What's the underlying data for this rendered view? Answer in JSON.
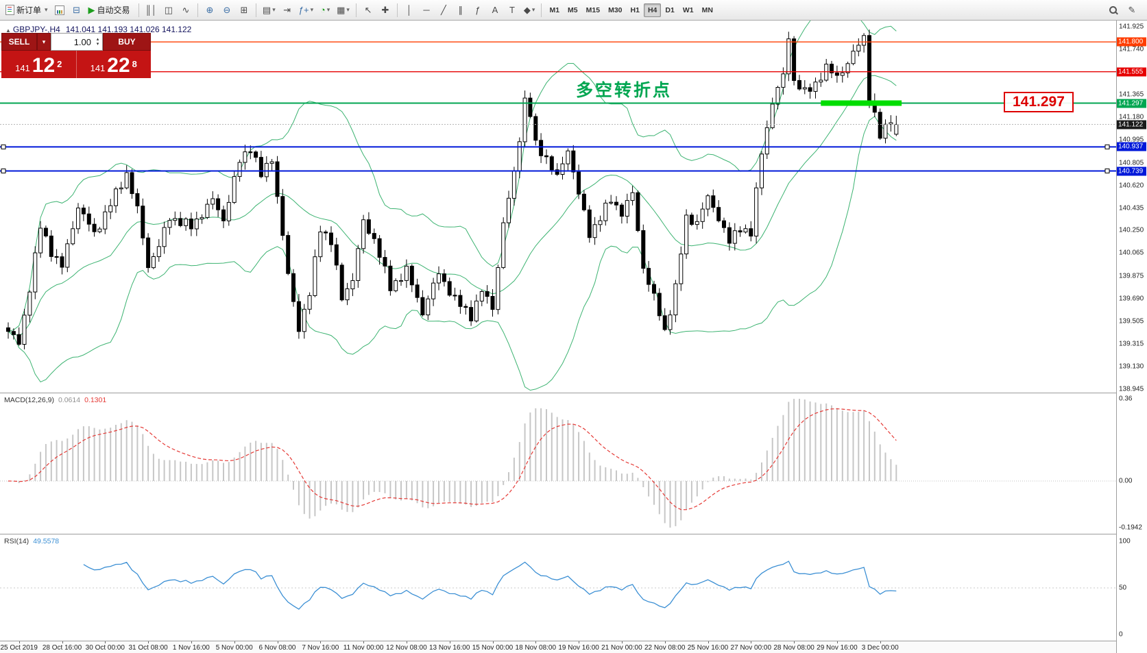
{
  "toolbar": {
    "new_order_label": "新订单",
    "autotrading_label": "自动交易",
    "timeframes": [
      "M1",
      "M5",
      "M15",
      "M30",
      "H1",
      "H4",
      "D1",
      "W1",
      "MN"
    ],
    "active_timeframe": "H4"
  },
  "trade_panel": {
    "sell_label": "SELL",
    "buy_label": "BUY",
    "volume": "1.00",
    "bid_prefix": "141",
    "bid_main": "12",
    "bid_sup": "2",
    "ask_prefix": "141",
    "ask_main": "22",
    "ask_sup": "8"
  },
  "chart": {
    "symbol_title": "GBPJPY-,H4",
    "ohlc_text": "141.041 141.193 141.026 141.122",
    "annotation_text": "多空转折点",
    "price_box_text": "141.297"
  },
  "indicators": {
    "macd_label": "MACD(12,26,9)",
    "macd_value1": "0.0614",
    "macd_value2": "0.1301",
    "rsi_label": "RSI(14)",
    "rsi_value": "49.5578"
  },
  "chart_data": {
    "type": "candlestick",
    "symbol": "GBPJPY-",
    "timeframe": "H4",
    "last_ohlc": [
      141.041,
      141.193,
      141.026,
      141.122
    ],
    "price_min": 138.945,
    "price_max": 141.925,
    "y_axis_ticks": [
      "141.925",
      "141.740",
      "141.555",
      "141.365",
      "141.180",
      "140.995",
      "140.805",
      "140.620",
      "140.435",
      "140.250",
      "140.065",
      "139.875",
      "139.690",
      "139.505",
      "139.315",
      "139.130",
      "138.945"
    ],
    "num_bars": 166,
    "label_start_bar": 2,
    "label_step": 8,
    "time_labels": [
      "25 Oct 2019",
      "28 Oct 16:00",
      "30 Oct 00:00",
      "31 Oct 08:00",
      "1 Nov 16:00",
      "5 Nov 00:00",
      "6 Nov 08:00",
      "7 Nov 16:00",
      "11 Nov 00:00",
      "12 Nov 08:00",
      "13 Nov 16:00",
      "15 Nov 00:00",
      "18 Nov 08:00",
      "19 Nov 16:00",
      "21 Nov 00:00",
      "22 Nov 08:00",
      "25 Nov 16:00",
      "27 Nov 00:00",
      "28 Nov 08:00",
      "29 Nov 16:00",
      "3 Dec 00:00"
    ],
    "price_path_anchors": [
      [
        0,
        139.42
      ],
      [
        2,
        139.32
      ],
      [
        4,
        139.78
      ],
      [
        6,
        140.28
      ],
      [
        8,
        140.08
      ],
      [
        10,
        139.95
      ],
      [
        13,
        140.45
      ],
      [
        16,
        140.22
      ],
      [
        20,
        140.55
      ],
      [
        22,
        140.72
      ],
      [
        24,
        140.42
      ],
      [
        26,
        139.96
      ],
      [
        28,
        140.12
      ],
      [
        30,
        140.36
      ],
      [
        34,
        140.28
      ],
      [
        38,
        140.5
      ],
      [
        40,
        140.34
      ],
      [
        43,
        140.82
      ],
      [
        45,
        140.94
      ],
      [
        47,
        140.7
      ],
      [
        49,
        140.85
      ],
      [
        52,
        139.88
      ],
      [
        54,
        139.45
      ],
      [
        56,
        139.72
      ],
      [
        58,
        140.28
      ],
      [
        60,
        140.15
      ],
      [
        62,
        139.7
      ],
      [
        64,
        139.85
      ],
      [
        66,
        140.32
      ],
      [
        68,
        140.18
      ],
      [
        71,
        139.78
      ],
      [
        74,
        139.92
      ],
      [
        77,
        139.58
      ],
      [
        80,
        139.9
      ],
      [
        83,
        139.68
      ],
      [
        86,
        139.55
      ],
      [
        88,
        139.75
      ],
      [
        90,
        139.62
      ],
      [
        92,
        140.3
      ],
      [
        94,
        140.72
      ],
      [
        96,
        141.32
      ],
      [
        97,
        141.2
      ],
      [
        98,
        140.95
      ],
      [
        100,
        140.85
      ],
      [
        102,
        140.68
      ],
      [
        104,
        140.92
      ],
      [
        106,
        140.55
      ],
      [
        108,
        140.22
      ],
      [
        110,
        140.36
      ],
      [
        112,
        140.5
      ],
      [
        114,
        140.4
      ],
      [
        116,
        140.55
      ],
      [
        118,
        139.95
      ],
      [
        120,
        139.7
      ],
      [
        122,
        139.42
      ],
      [
        124,
        139.78
      ],
      [
        126,
        140.35
      ],
      [
        128,
        140.32
      ],
      [
        130,
        140.52
      ],
      [
        132,
        140.36
      ],
      [
        134,
        140.15
      ],
      [
        136,
        140.28
      ],
      [
        138,
        140.22
      ],
      [
        140,
        140.9
      ],
      [
        142,
        141.3
      ],
      [
        144,
        141.52
      ],
      [
        145,
        141.85
      ],
      [
        146,
        141.48
      ],
      [
        148,
        141.38
      ],
      [
        150,
        141.46
      ],
      [
        152,
        141.58
      ],
      [
        154,
        141.52
      ],
      [
        156,
        141.62
      ],
      [
        158,
        141.78
      ],
      [
        159,
        141.85
      ],
      [
        160,
        141.35
      ],
      [
        162,
        141.02
      ],
      [
        164,
        141.18
      ],
      [
        165,
        141.12
      ]
    ],
    "hlines": [
      {
        "price": 141.8,
        "color": "#ff3d00",
        "width": 1.4,
        "label": "141.800"
      },
      {
        "price": 141.555,
        "color": "#e60000",
        "width": 1.4,
        "label": "141.555"
      },
      {
        "price": 141.297,
        "color": "#00a651",
        "width": 2,
        "label": "141.297",
        "thick_from_bar": 151,
        "thick_to_bar": 166,
        "thick_color": "#00dd00"
      },
      {
        "price": 140.937,
        "color": "#0018d9",
        "width": 2,
        "label": "140.937",
        "handles": true
      },
      {
        "price": 140.739,
        "color": "#0018d9",
        "width": 2,
        "label": "140.739",
        "handles": true
      }
    ],
    "current_price": {
      "value": 141.122,
      "label": "141.122",
      "color": "#1a1a1a"
    },
    "bollinger": {
      "period": 20,
      "deviation": 2,
      "color": "#3cb371"
    },
    "macd": {
      "params": [
        12,
        26,
        9
      ],
      "axis_labels": [
        "0.36",
        "0.00",
        "-0.1942"
      ],
      "hist_color": "#c6c6c6",
      "signal_color": "#e53935"
    },
    "rsi": {
      "period": 14,
      "axis_labels": [
        "100",
        "50",
        "0"
      ],
      "color": "#3b8fd4"
    }
  }
}
